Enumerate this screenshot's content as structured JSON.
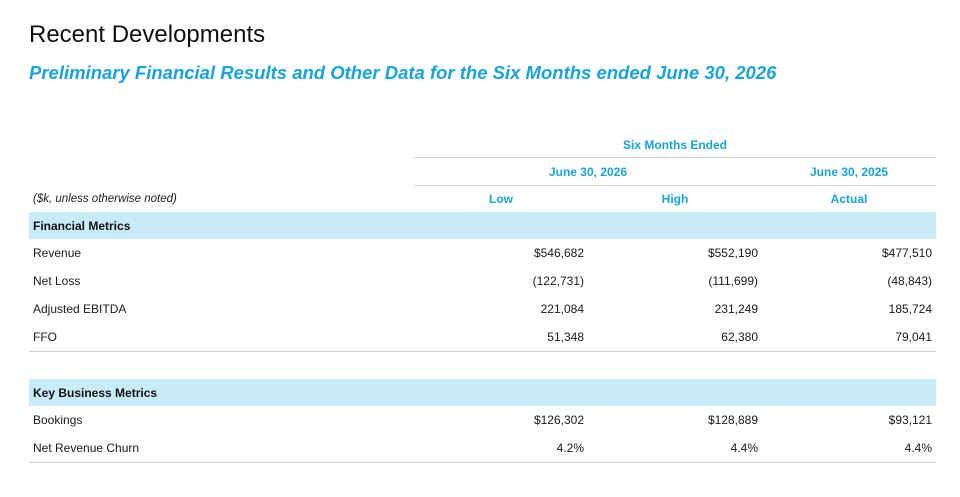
{
  "header": {
    "title": "Recent Developments",
    "subtitle": "Preliminary Financial Results and Other Data for the Six Months ended June 30, 2026"
  },
  "table": {
    "group_header": "Six Months Ended",
    "period_current": "June 30, 2026",
    "period_prior": "June 30, 2025",
    "units_note": "($k, unless otherwise noted)",
    "columns": [
      "Low",
      "High",
      "Actual"
    ],
    "sections": [
      {
        "title": "Financial Metrics",
        "rows": [
          {
            "label": "Revenue",
            "low": "$546,682",
            "high": "$552,190",
            "actual": "$477,510"
          },
          {
            "label": "Net Loss",
            "low": "(122,731)",
            "high": "(111,699)",
            "actual": "(48,843)"
          },
          {
            "label": "Adjusted EBITDA",
            "low": "221,084",
            "high": "231,249",
            "actual": "185,724"
          },
          {
            "label": "FFO",
            "low": "51,348",
            "high": "62,380",
            "actual": "79,041"
          }
        ]
      },
      {
        "title": "Key Business Metrics",
        "rows": [
          {
            "label": "Bookings",
            "low": "$126,302",
            "high": "$128,889",
            "actual": "$93,121"
          },
          {
            "label": "Net Revenue Churn",
            "low": "4.2%",
            "high": "4.4%",
            "actual": "4.4%"
          }
        ]
      }
    ]
  },
  "colors": {
    "accent": "#1aa3d9",
    "section_fill": "#c8ebfa",
    "rule": "#cfcfcf"
  }
}
